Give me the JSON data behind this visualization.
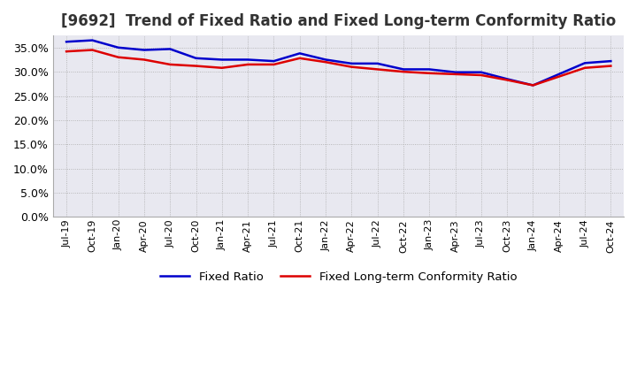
{
  "title": "[9692]  Trend of Fixed Ratio and Fixed Long-term Conformity Ratio",
  "title_fontsize": 12,
  "legend_labels": [
    "Fixed Ratio",
    "Fixed Long-term Conformity Ratio"
  ],
  "line_colors": [
    "#0000cc",
    "#dd0000"
  ],
  "ylim": [
    0.0,
    0.375
  ],
  "yticks": [
    0.0,
    0.05,
    0.1,
    0.15,
    0.2,
    0.25,
    0.3,
    0.35
  ],
  "background_color": "#ffffff",
  "plot_bg_color": "#e8e8f0",
  "grid_color": "#aaaaaa",
  "x_labels": [
    "Jul-19",
    "Oct-19",
    "Jan-20",
    "Apr-20",
    "Jul-20",
    "Oct-20",
    "Jan-21",
    "Apr-21",
    "Jul-21",
    "Oct-21",
    "Jan-22",
    "Apr-22",
    "Jul-22",
    "Oct-22",
    "Jan-23",
    "Apr-23",
    "Jul-23",
    "Oct-23",
    "Jan-24",
    "Apr-24",
    "Jul-24",
    "Oct-24"
  ],
  "fixed_ratio": [
    0.362,
    0.365,
    0.35,
    0.345,
    0.347,
    0.328,
    0.325,
    0.325,
    0.322,
    0.338,
    0.325,
    0.317,
    0.317,
    0.305,
    0.305,
    0.299,
    0.299,
    0.285,
    0.272,
    0.295,
    0.318,
    0.322
  ],
  "fixed_lt_ratio": [
    0.342,
    0.345,
    0.33,
    0.325,
    0.315,
    0.312,
    0.308,
    0.315,
    0.315,
    0.328,
    0.32,
    0.31,
    0.305,
    0.3,
    0.297,
    0.295,
    0.293,
    0.283,
    0.272,
    0.29,
    0.308,
    0.312
  ]
}
